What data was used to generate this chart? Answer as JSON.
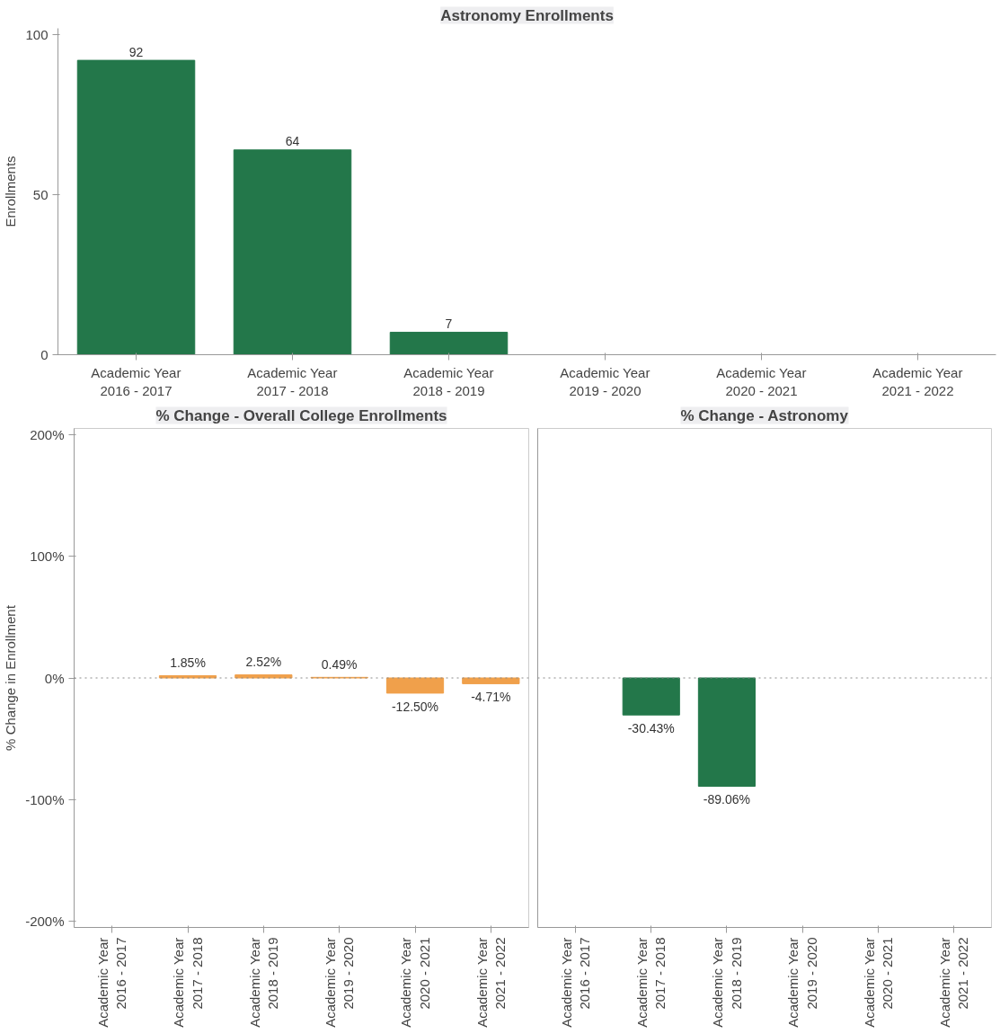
{
  "chart_data": [
    {
      "type": "bar",
      "title": "Astronomy Enrollments",
      "ylabel": "Enrollments",
      "categories": [
        "Academic Year\n2016 - 2017",
        "Academic Year\n2017 - 2018",
        "Academic Year\n2018 - 2019",
        "Academic Year\n2019 - 2020",
        "Academic Year\n2020 - 2021",
        "Academic Year\n2021 - 2022"
      ],
      "values": [
        92,
        64,
        7,
        null,
        null,
        null
      ],
      "color": "#23774a",
      "ylim": [
        0,
        102
      ],
      "yticks": [
        0,
        50,
        100
      ],
      "data_labels": true,
      "grid": false
    },
    {
      "type": "bar",
      "title": "% Change - Overall College Enrollments",
      "ylabel": "% Change in Enrollment",
      "categories": [
        "Academic Year\n2016 - 2017",
        "Academic Year\n2017 - 2018",
        "Academic Year\n2018 - 2019",
        "Academic Year\n2019 - 2020",
        "Academic Year\n2020 - 2021",
        "Academic Year\n2021 - 2022"
      ],
      "values": [
        null,
        1.85,
        2.52,
        0.49,
        -12.5,
        -4.71
      ],
      "color": "#f0a04b",
      "value_labels": [
        null,
        "1.85%",
        "2.52%",
        "0.49%",
        "-12.50%",
        "-4.71%"
      ],
      "ylim": [
        -205,
        205
      ],
      "yticks": [
        {
          "value": -200,
          "label": "-200%"
        },
        {
          "value": -100,
          "label": "-100%"
        },
        {
          "value": 0,
          "label": "0%"
        },
        {
          "value": 100,
          "label": "100%"
        },
        {
          "value": 200,
          "label": "200%"
        }
      ],
      "ref_lines": [
        {
          "axis": "y",
          "value": 0,
          "line_style": "dotted"
        }
      ],
      "grid": false
    },
    {
      "type": "bar",
      "title": "% Change - Astronomy",
      "categories": [
        "Academic Year\n2016 - 2017",
        "Academic Year\n2017 - 2018",
        "Academic Year\n2018 - 2019",
        "Academic Year\n2019 - 2020",
        "Academic Year\n2020 - 2021",
        "Academic Year\n2021 - 2022"
      ],
      "values": [
        null,
        -30.43,
        -89.06,
        null,
        null,
        null
      ],
      "color": "#23774a",
      "value_labels": [
        null,
        "-30.43%",
        "-89.06%",
        null,
        null,
        null
      ],
      "ylim": [
        -205,
        205
      ],
      "ref_lines": [
        {
          "axis": "y",
          "value": 0,
          "line_style": "dotted"
        }
      ],
      "grid": false,
      "tick_labels": "x"
    }
  ]
}
